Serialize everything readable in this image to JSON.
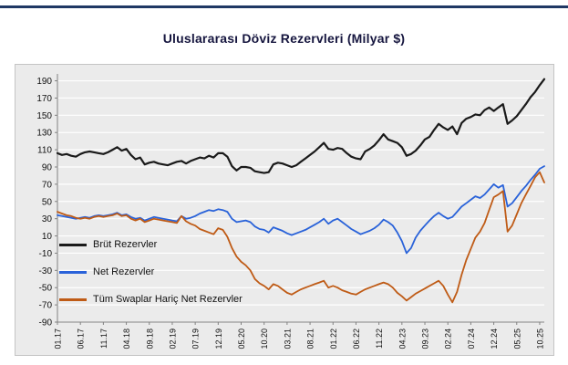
{
  "page": {
    "accent_bar_color": "#1f3864",
    "title_color": "#16163f",
    "background": "#ffffff"
  },
  "chart_data": {
    "type": "line",
    "title": "Uluslararası Döviz Rezervleri (Milyar $)",
    "xlabel": "",
    "ylabel": "",
    "panel_bg": "#ebebeb",
    "grid_color": "#ffffff",
    "axis_color": "#808080",
    "tick_text_color": "#111111",
    "grid": true,
    "legend_position": "inside-lower-left",
    "ylim": [
      -90,
      198
    ],
    "y_ticks": [
      190,
      170,
      150,
      130,
      110,
      90,
      70,
      50,
      30,
      10,
      -10,
      -30,
      -50,
      -70,
      -90
    ],
    "x_tick_every": 5,
    "x_tick_labels": [
      "01.17",
      "06.17",
      "11.17",
      "04.18",
      "09.18",
      "02.19",
      "07.19",
      "12.19",
      "05.20",
      "10.20",
      "03.21",
      "08.21",
      "01.22",
      "06.22",
      "11.22",
      "04.23",
      "09.23",
      "02.24",
      "07.24",
      "12.24",
      "05.25",
      "10.25"
    ],
    "series": [
      {
        "name": "Brüt Rezervler",
        "color": "#1a1a1a",
        "values": [
          106,
          104,
          105,
          103,
          102,
          105,
          107,
          108,
          107,
          106,
          105,
          107,
          110,
          113,
          109,
          111,
          104,
          99,
          101,
          93,
          95,
          96,
          94,
          93,
          92,
          94,
          96,
          97,
          94,
          97,
          99,
          101,
          100,
          103,
          101,
          106,
          106,
          102,
          91,
          86,
          90,
          90,
          89,
          85,
          84,
          83,
          84,
          93,
          95,
          94,
          92,
          90,
          92,
          96,
          100,
          104,
          108,
          113,
          118,
          111,
          110,
          112,
          111,
          106,
          102,
          100,
          99,
          108,
          111,
          115,
          121,
          128,
          122,
          120,
          118,
          113,
          103,
          105,
          109,
          115,
          122,
          125,
          133,
          140,
          136,
          133,
          137,
          128,
          141,
          146,
          148,
          151,
          150,
          156,
          159,
          155,
          159,
          163,
          140,
          144,
          149,
          156,
          163,
          171,
          177,
          185,
          192
        ]
      },
      {
        "name": "Net Rezervler",
        "color": "#2962d9",
        "values": [
          34,
          33,
          32,
          31,
          30,
          31,
          32,
          31,
          33,
          34,
          33,
          34,
          35,
          37,
          34,
          35,
          32,
          30,
          31,
          28,
          30,
          32,
          31,
          30,
          29,
          28,
          27,
          33,
          30,
          31,
          33,
          36,
          38,
          40,
          39,
          41,
          40,
          38,
          30,
          26,
          27,
          28,
          26,
          21,
          18,
          17,
          14,
          20,
          18,
          16,
          13,
          11,
          13,
          15,
          17,
          20,
          23,
          26,
          30,
          24,
          28,
          30,
          26,
          22,
          18,
          15,
          12,
          14,
          16,
          19,
          23,
          29,
          26,
          22,
          14,
          4,
          -10,
          -4,
          8,
          16,
          22,
          28,
          33,
          37,
          33,
          30,
          32,
          38,
          44,
          48,
          52,
          56,
          54,
          58,
          64,
          70,
          66,
          69,
          44,
          48,
          55,
          62,
          68,
          75,
          81,
          88,
          91
        ]
      },
      {
        "name": "Tüm Swaplar Hariç Net Rezervler",
        "color": "#bf5b16",
        "values": [
          38,
          36,
          34,
          33,
          31,
          30,
          31,
          30,
          32,
          33,
          32,
          33,
          34,
          36,
          33,
          34,
          30,
          28,
          30,
          26,
          28,
          30,
          29,
          28,
          27,
          26,
          25,
          33,
          27,
          24,
          22,
          18,
          16,
          14,
          12,
          19,
          17,
          9,
          -4,
          -14,
          -20,
          -24,
          -30,
          -40,
          -45,
          -48,
          -52,
          -46,
          -48,
          -52,
          -56,
          -58,
          -55,
          -52,
          -50,
          -48,
          -46,
          -44,
          -42,
          -50,
          -48,
          -50,
          -53,
          -55,
          -57,
          -58,
          -55,
          -52,
          -50,
          -48,
          -46,
          -44,
          -46,
          -50,
          -56,
          -60,
          -65,
          -61,
          -57,
          -54,
          -51,
          -48,
          -45,
          -42,
          -48,
          -58,
          -67,
          -55,
          -35,
          -18,
          -5,
          8,
          15,
          25,
          40,
          55,
          58,
          62,
          15,
          22,
          35,
          48,
          58,
          68,
          78,
          84,
          72
        ]
      }
    ]
  }
}
